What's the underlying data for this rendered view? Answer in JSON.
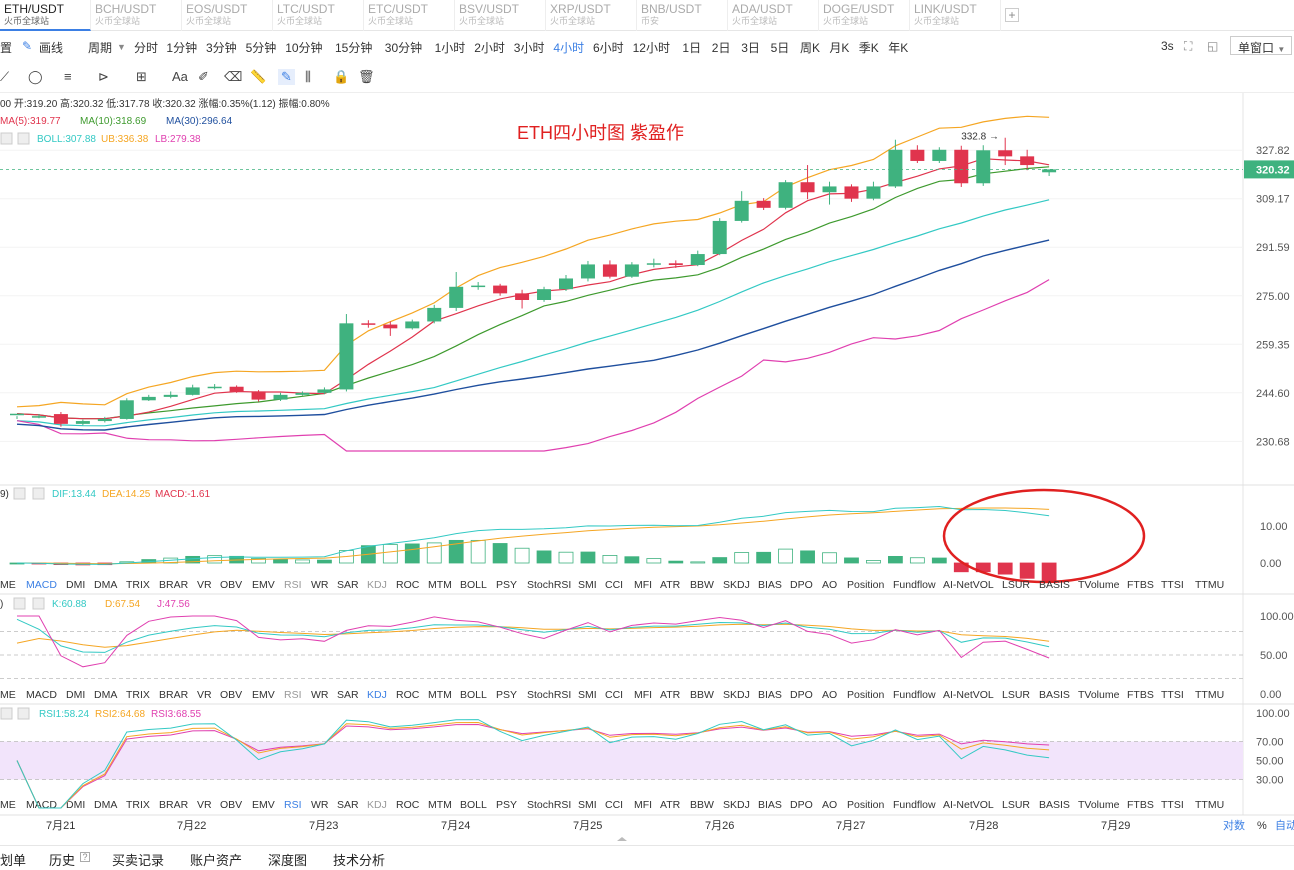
{
  "tabs": [
    {
      "symbol": "ETH/USDT",
      "sub": "火币全球站",
      "active": true
    },
    {
      "symbol": "BCH/USDT",
      "sub": "火币全球站"
    },
    {
      "symbol": "EOS/USDT",
      "sub": "火币全球站"
    },
    {
      "symbol": "LTC/USDT",
      "sub": "火币全球站"
    },
    {
      "symbol": "ETC/USDT",
      "sub": "火币全球站"
    },
    {
      "symbol": "BSV/USDT",
      "sub": "火币全球站"
    },
    {
      "symbol": "XRP/USDT",
      "sub": "火币全球站"
    },
    {
      "symbol": "BNB/USDT",
      "sub": "币安"
    },
    {
      "symbol": "ADA/USDT",
      "sub": "火币全球站"
    },
    {
      "symbol": "DOGE/USDT",
      "sub": "火币全球站"
    },
    {
      "symbol": "LINK/USDT",
      "sub": "火币全球站"
    }
  ],
  "toolbar": {
    "settings": "置",
    "draw": "画线",
    "period": "周期",
    "periods": [
      "分时",
      "1分钟",
      "3分钟",
      "5分钟",
      "10分钟",
      "15分钟",
      "30分钟",
      "1小时",
      "2小时",
      "3小时",
      "4小时",
      "6小时",
      "12小时",
      "1日",
      "2日",
      "3日",
      "5日",
      "周K",
      "月K",
      "季K",
      "年K"
    ],
    "active_period": "4小时",
    "refresh": "3s",
    "window": "单窗口"
  },
  "draw_tools": {
    "text_tool": "Aa"
  },
  "main_info": {
    "ohlc_prefix": "00",
    "open": "开:319.20",
    "high": "高:320.32",
    "low": "低:317.78",
    "close": "收:320.32",
    "change_label": "涨幅:",
    "change_value": "0.35%(1.12)",
    "amp": "振幅:0.80%",
    "ma5": "MA(5):319.77",
    "ma10": "MA(10):318.69",
    "ma30": "MA(30):296.64",
    "boll": "BOLL:307.88",
    "ub": "UB:336.38",
    "lb": "LB:279.38"
  },
  "annotation": {
    "text": "ETH四小时图 紫盈作",
    "high_label": "332.8",
    "high_arrow": "→"
  },
  "price_axis": {
    "ticks": [
      "327.82",
      "309.17",
      "291.59",
      "275.00",
      "259.35",
      "244.60",
      "230.68"
    ],
    "current": "320.32"
  },
  "macd_info": {
    "prefix": "9)",
    "dif": "DIF:13.44",
    "dea": "DEA:14.25",
    "macd": "MACD:-1.61"
  },
  "macd_axis": {
    "ticks": [
      "10.00",
      "0.00"
    ]
  },
  "kdj_info": {
    "prefix": ")",
    "k": "K:60.88",
    "d": "D:67.54",
    "j": "J:47.56"
  },
  "kdj_axis": {
    "ticks": [
      "100.00",
      "50.00",
      "0.00"
    ]
  },
  "rsi_info": {
    "rsi1": "RSI1:58.24",
    "rsi2": "RSI2:64.68",
    "rsi3": "RSI3:68.55"
  },
  "rsi_axis": {
    "ticks": [
      "100.00",
      "70.00",
      "50.00",
      "30.00"
    ]
  },
  "indicator_row": [
    "ME",
    "MACD",
    "DMI",
    "DMA",
    "TRIX",
    "BRAR",
    "VR",
    "OBV",
    "EMV",
    "RSI",
    "WR",
    "SAR",
    "KDJ",
    "ROC",
    "MTM",
    "BOLL",
    "PSY",
    "StochRSI",
    "SMI",
    "CCI",
    "MFI",
    "ATR",
    "BBW",
    "SKDJ",
    "BIAS",
    "DPO",
    "AO",
    "Position",
    "Fundflow",
    "AI-NetVOL",
    "LSUR",
    "BASIS",
    "TVolume",
    "FTBS",
    "TTSI",
    "TTMU"
  ],
  "indicator_active": {
    "row1": "MACD",
    "row2": "KDJ",
    "row3": "RSI"
  },
  "time_axis": {
    "labels": [
      "7月21",
      "7月22",
      "7月23",
      "7月24",
      "7月25",
      "7月26",
      "7月27",
      "7月28",
      "7月29"
    ],
    "scale": "对数",
    "pct": "%",
    "auto": "自动"
  },
  "bottom_tabs": [
    "划单",
    "历史",
    "买卖记录",
    "账户资产",
    "深度图",
    "技术分析"
  ],
  "colors": {
    "up": "#3fb27f",
    "down": "#e0344d",
    "ma5": "#e0344d",
    "ma10": "#3e9a2e",
    "ma30": "#1f4f9e",
    "ub": "#f5a623",
    "boll": "#33c9c4",
    "lb": "#e040b0",
    "accent": "#3b7fe4",
    "circle": "#e02020"
  },
  "chart_data": {
    "type": "candlestick",
    "x_labels": [
      "7月21",
      "7月22",
      "7月23",
      "7月24",
      "7月25",
      "7月26",
      "7月27",
      "7月28",
      "7月29"
    ],
    "candles": [
      [
        238.5,
        238.5,
        237.0,
        237.8
      ],
      [
        237.8,
        237.8,
        237.2,
        238.4
      ],
      [
        238.4,
        235.6,
        234.8,
        239.0
      ],
      [
        235.6,
        236.4,
        235.2,
        236.8
      ],
      [
        236.4,
        237.0,
        236.0,
        237.6
      ],
      [
        237.0,
        242.4,
        236.8,
        243.0
      ],
      [
        242.4,
        243.4,
        242.2,
        244.0
      ],
      [
        243.4,
        244.0,
        243.0,
        245.0
      ],
      [
        244.0,
        246.2,
        243.8,
        247.0
      ],
      [
        246.2,
        246.4,
        245.6,
        247.2
      ],
      [
        246.4,
        245.0,
        244.6,
        246.8
      ],
      [
        245.0,
        242.6,
        242.0,
        245.4
      ],
      [
        242.6,
        244.0,
        242.2,
        244.6
      ],
      [
        244.0,
        244.6,
        243.8,
        245.0
      ],
      [
        244.6,
        245.6,
        244.2,
        246.2
      ],
      [
        245.6,
        266.0,
        245.0,
        269.0
      ],
      [
        266.0,
        265.6,
        264.6,
        267.0
      ],
      [
        265.6,
        264.4,
        262.0,
        266.6
      ],
      [
        264.4,
        266.6,
        264.0,
        267.2
      ],
      [
        266.6,
        271.0,
        266.0,
        272.0
      ],
      [
        271.0,
        278.0,
        270.0,
        283.0
      ],
      [
        278.0,
        278.4,
        277.0,
        279.6
      ],
      [
        278.4,
        275.8,
        275.0,
        279.0
      ],
      [
        275.8,
        273.6,
        270.8,
        277.0
      ],
      [
        273.6,
        277.2,
        273.0,
        278.0
      ],
      [
        277.2,
        280.8,
        276.6,
        282.0
      ],
      [
        280.8,
        285.6,
        279.8,
        286.8
      ],
      [
        285.6,
        281.4,
        280.8,
        287.0
      ],
      [
        281.4,
        285.6,
        281.0,
        286.4
      ],
      [
        285.6,
        286.0,
        284.6,
        287.6
      ],
      [
        286.0,
        285.4,
        284.4,
        287.0
      ],
      [
        285.4,
        289.2,
        285.0,
        290.4
      ],
      [
        289.2,
        301.0,
        288.8,
        302.0
      ],
      [
        301.0,
        308.4,
        300.4,
        312.0
      ],
      [
        308.4,
        305.8,
        305.0,
        309.4
      ],
      [
        305.8,
        315.4,
        305.2,
        316.2
      ],
      [
        315.4,
        311.6,
        309.0,
        322.0
      ],
      [
        311.6,
        313.8,
        307.0,
        315.6
      ],
      [
        313.8,
        309.2,
        308.0,
        314.6
      ],
      [
        309.2,
        313.8,
        308.6,
        315.6
      ],
      [
        313.8,
        328.0,
        313.2,
        332.0
      ],
      [
        328.0,
        323.6,
        322.8,
        329.8
      ],
      [
        323.6,
        328.0,
        322.8,
        329.0
      ],
      [
        328.0,
        315.0,
        313.6,
        329.6
      ],
      [
        315.0,
        327.8,
        314.0,
        329.8
      ],
      [
        327.8,
        325.4,
        322.0,
        332.8
      ],
      [
        325.4,
        322.0,
        320.0,
        328.0
      ],
      [
        319.2,
        320.32,
        317.78,
        320.32
      ]
    ],
    "ma5_last": 319.77,
    "ma10_last": 318.69,
    "ma30_last": 296.64,
    "boll_last": 307.88,
    "ub_last": 336.38,
    "lb_last": 279.38,
    "macd": {
      "dif_last": 13.44,
      "dea_last": 14.25,
      "macd_last": -1.61
    },
    "kdj": {
      "k_last": 60.88,
      "d_last": 67.54,
      "j_last": 47.56
    },
    "rsi": {
      "rsi1_last": 58.24,
      "rsi2_last": 64.68,
      "rsi3_last": 68.55
    },
    "ylim": [
      225,
      340
    ],
    "log_scale": true
  }
}
